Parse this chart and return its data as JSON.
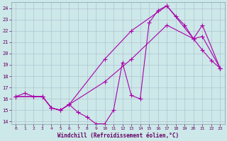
{
  "xlabel": "Windchill (Refroidissement éolien,°C)",
  "xlim_min": -0.5,
  "xlim_max": 23.5,
  "ylim_min": 13.8,
  "ylim_max": 24.5,
  "yticks": [
    14,
    15,
    16,
    17,
    18,
    19,
    20,
    21,
    22,
    23,
    24
  ],
  "xticks": [
    0,
    1,
    2,
    3,
    4,
    5,
    6,
    7,
    8,
    9,
    10,
    11,
    12,
    13,
    14,
    15,
    16,
    17,
    18,
    19,
    20,
    21,
    22,
    23
  ],
  "bg_color": "#cce8e8",
  "line_color": "#aa00aa",
  "grid_color": "#aabbcc",
  "line1_x": [
    0,
    1,
    2,
    3,
    4,
    5,
    6,
    7,
    8,
    9,
    10,
    11,
    12,
    13,
    14,
    15,
    16,
    17,
    18,
    19,
    20,
    21,
    22,
    23
  ],
  "line1_y": [
    16.2,
    16.5,
    16.2,
    16.2,
    15.2,
    15.0,
    15.5,
    14.8,
    14.4,
    13.8,
    13.8,
    15.0,
    19.2,
    16.3,
    16.0,
    22.7,
    23.8,
    24.2,
    23.3,
    22.5,
    21.3,
    20.3,
    19.4,
    18.7
  ],
  "line2_x": [
    0,
    3,
    4,
    5,
    6,
    10,
    13,
    17,
    20,
    21,
    23
  ],
  "line2_y": [
    16.2,
    16.2,
    15.2,
    15.0,
    15.5,
    17.5,
    19.5,
    22.5,
    21.3,
    21.5,
    18.7
  ],
  "line3_x": [
    0,
    3,
    4,
    5,
    6,
    10,
    13,
    17,
    20,
    21,
    23
  ],
  "line3_y": [
    16.2,
    16.2,
    15.2,
    15.0,
    15.5,
    19.5,
    22.0,
    24.2,
    21.3,
    22.5,
    18.7
  ]
}
